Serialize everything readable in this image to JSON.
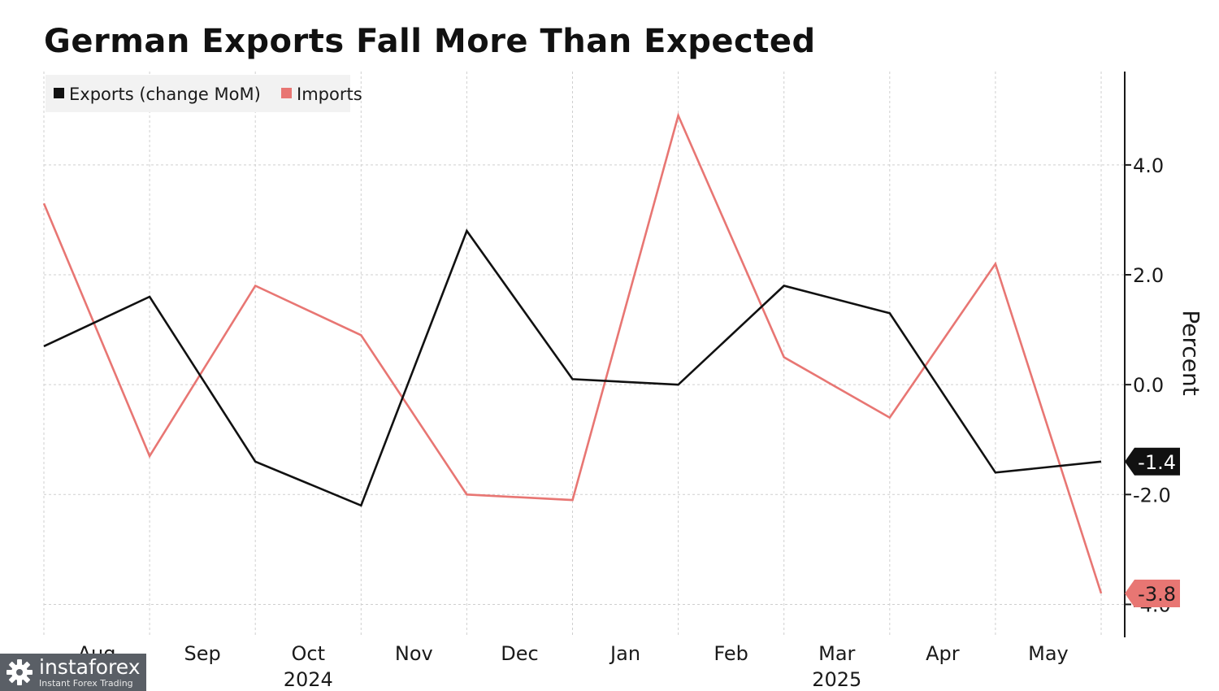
{
  "watermark": {
    "brand": "instaforex",
    "subtitle": "Instant Forex Trading",
    "logo_icon": "gear-logo-icon"
  },
  "chart_data": {
    "type": "line",
    "title": "German Exports Fall More Than Expected",
    "ylabel": "Percent",
    "xlabel": "",
    "x": [
      "2024-07",
      "2024-08",
      "2024-09",
      "2024-10",
      "2024-11",
      "2024-12",
      "2025-01",
      "2025-02",
      "2025-03",
      "2025-04",
      "2025-05"
    ],
    "x_tick_labels": [
      "Aug",
      "Sep",
      "Oct",
      "Nov",
      "Dec",
      "Jan",
      "Feb",
      "Mar",
      "Apr",
      "May"
    ],
    "year_labels": [
      {
        "label": "2024",
        "under": "Oct"
      },
      {
        "label": "2025",
        "under": "Mar"
      }
    ],
    "y_ticks": [
      4.0,
      2.0,
      0.0,
      -2.0,
      -4.0
    ],
    "y_tick_labels": [
      "4.0",
      "2.0",
      "0.0",
      "-2.0",
      "-4.0"
    ],
    "ylim": [
      -4.6,
      5.7
    ],
    "y_axis_side": "right",
    "grid": true,
    "legend_position": "top-left",
    "series": [
      {
        "name": "Exports (change MoM)",
        "color": "#111111",
        "values": [
          0.7,
          1.6,
          -1.4,
          -2.2,
          2.8,
          0.1,
          0.0,
          1.8,
          1.3,
          -1.6,
          -1.4
        ],
        "last_value_label": "-1.4"
      },
      {
        "name": "Imports",
        "color": "#e87673",
        "values": [
          3.3,
          -1.3,
          1.8,
          0.9,
          -2.0,
          -2.1,
          4.9,
          0.5,
          -0.6,
          2.2,
          -3.8
        ],
        "last_value_label": "-3.8"
      }
    ]
  }
}
